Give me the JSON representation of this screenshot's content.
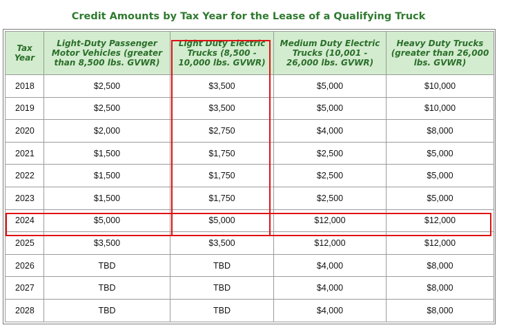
{
  "title": "Credit Amounts by Tax Year for the Lease of a Qualifying Truck",
  "headers": [
    "Tax Year",
    "Light-Duty Passenger Motor Vehicles (greater than 8,500 lbs. GVWR)",
    "Light Duty Electric Trucks (8,500 - 10,000 lbs. GVWR)",
    "Medium Duty Electric Trucks (10,001 - 26,000 lbs. GVWR)",
    "Heavy Duty Trucks (greater than 26,000 lbs. GVWR)"
  ],
  "rows": [
    [
      "2018",
      "$2,500",
      "$3,500",
      "$5,000",
      "$10,000"
    ],
    [
      "2019",
      "$2,500",
      "$3,500",
      "$5,000",
      "$10,000"
    ],
    [
      "2020",
      "$2,000",
      "$2,750",
      "$4,000",
      "$8,000"
    ],
    [
      "2021",
      "$1,500",
      "$1,750",
      "$2,500",
      "$5,000"
    ],
    [
      "2022",
      "$1,500",
      "$1,750",
      "$2,500",
      "$5,000"
    ],
    [
      "2023",
      "$1,500",
      "$1,750",
      "$2,500",
      "$5,000"
    ],
    [
      "2024",
      "$5,000",
      "$5,000",
      "$12,000",
      "$12,000"
    ],
    [
      "2025",
      "$3,500",
      "$3,500",
      "$12,000",
      "$12,000"
    ],
    [
      "2026",
      "TBD",
      "TBD",
      "$4,000",
      "$8,000"
    ],
    [
      "2027",
      "TBD",
      "TBD",
      "$4,000",
      "$8,000"
    ],
    [
      "2028",
      "TBD",
      "TBD",
      "$4,000",
      "$8,000"
    ]
  ],
  "highlight_color": "#e01010",
  "highlighted_column": "Light Duty Electric Trucks (8,500 - 10,000 lbs. GVWR)",
  "highlighted_row": "2024"
}
